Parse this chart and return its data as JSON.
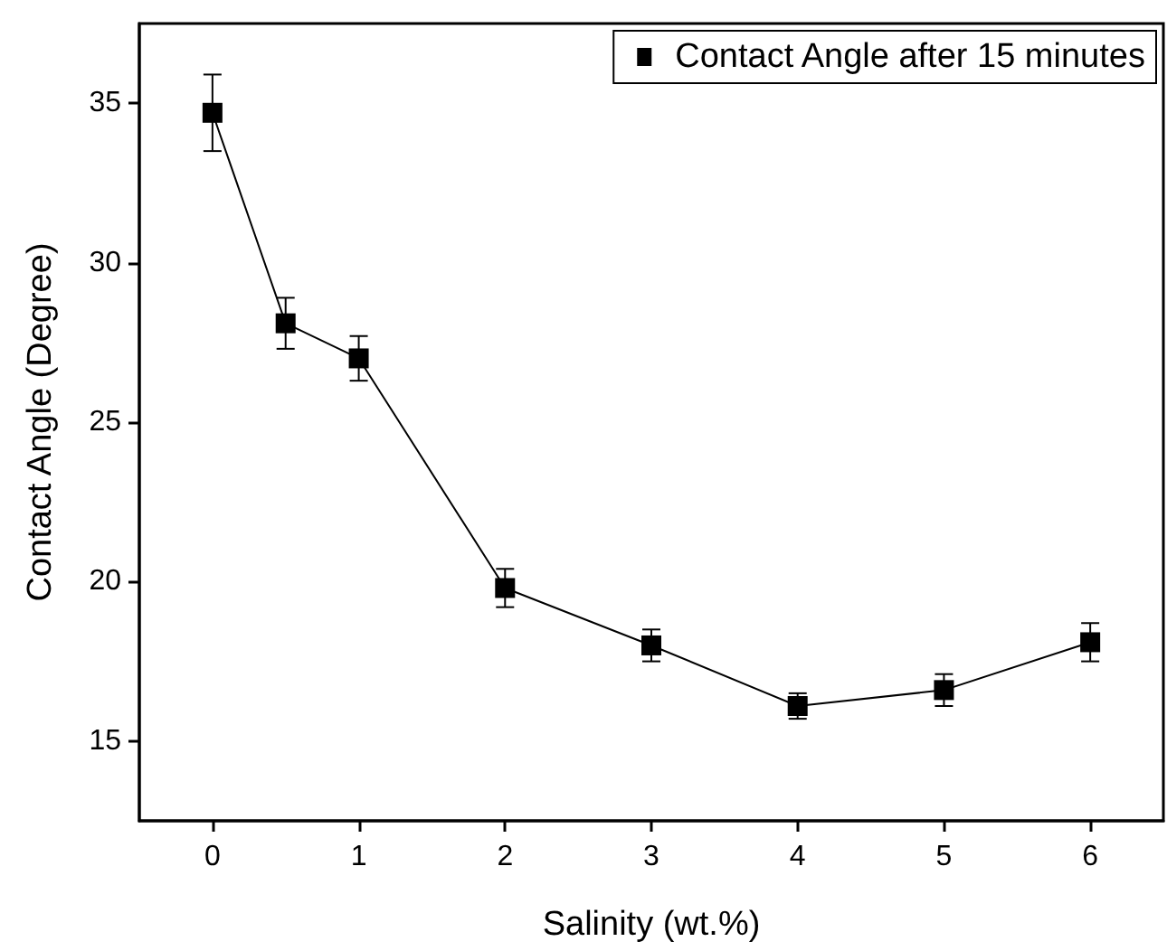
{
  "chart_data": {
    "type": "line",
    "xlabel": "Salinity (wt.%)",
    "ylabel": "Contact Angle (Degree)",
    "xlim": [
      -0.5,
      6.5
    ],
    "xticks": [
      0,
      1,
      2,
      3,
      4,
      5,
      6
    ],
    "ylim": [
      12.5,
      37.5
    ],
    "yticks": [
      15,
      20,
      25,
      30,
      35
    ],
    "series": [
      {
        "name": "Contact Angle after 15 minutes",
        "color": "#000000",
        "x": [
          0,
          0.5,
          1,
          2,
          3,
          4,
          5,
          6
        ],
        "values": [
          34.7,
          28.1,
          27.0,
          19.8,
          18.0,
          16.1,
          16.6,
          18.1
        ],
        "errors": [
          1.2,
          0.8,
          0.7,
          0.6,
          0.5,
          0.4,
          0.5,
          0.6
        ]
      }
    ],
    "marker": "square",
    "line_style": "solid",
    "grid": false,
    "legend": "top right"
  }
}
